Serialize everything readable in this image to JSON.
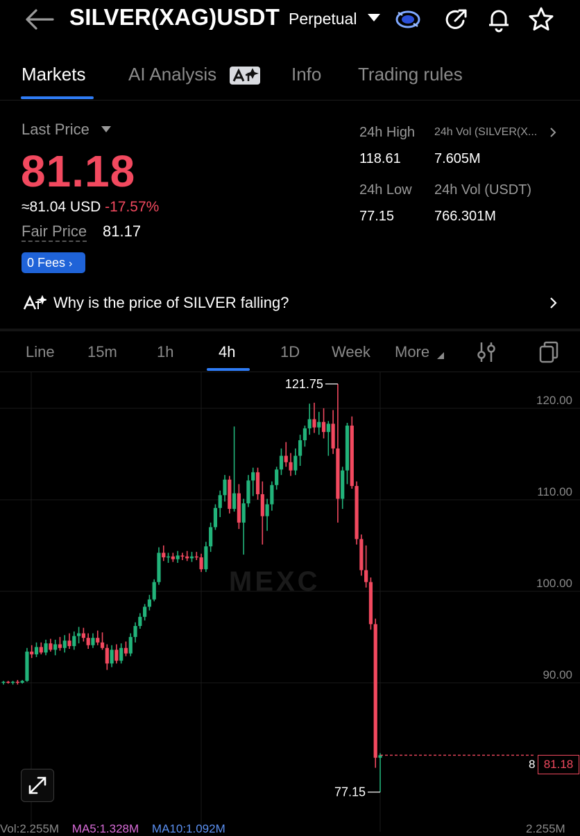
{
  "header": {
    "symbol": "SILVER(XAG)USDT",
    "contract_type": "Perpetual",
    "icons": [
      "back-arrow-icon",
      "coin-badge-icon",
      "share-icon",
      "bell-icon",
      "star-icon"
    ]
  },
  "tabs": [
    {
      "label": "Markets",
      "active": true
    },
    {
      "label": "AI Analysis",
      "active": false
    },
    {
      "label": "Info",
      "active": false
    },
    {
      "label": "Trading rules",
      "active": false
    }
  ],
  "price": {
    "last_price_label": "Last Price",
    "last_price": "81.18",
    "usd_value": "≈81.04 USD",
    "change": "-17.57%",
    "fair_price_label": "Fair Price",
    "fair_price": "81.17",
    "fees_label": "0 Fees"
  },
  "stats": {
    "high_label": "24h High",
    "high": "118.61",
    "vol_silver_label": "24h Vol (SILVER(X...",
    "vol_silver": "7.605M",
    "low_label": "24h Low",
    "low": "77.15",
    "vol_usdt_label": "24h Vol  (USDT)",
    "vol_usdt": "766.301M"
  },
  "why_row": {
    "text": "Why is the price of SILVER falling?"
  },
  "intervals": [
    {
      "label": "Line",
      "active": false
    },
    {
      "label": "15m",
      "active": false
    },
    {
      "label": "1h",
      "active": false
    },
    {
      "label": "4h",
      "active": true
    },
    {
      "label": "1D",
      "active": false
    },
    {
      "label": "Week",
      "active": false
    },
    {
      "label": "More",
      "active": false
    }
  ],
  "chart_overlay": {
    "watermark": "MEXC",
    "current_price_tag": "81.18",
    "current_price_edge": "8",
    "high_marker": "121.75",
    "low_marker": "77.15",
    "vol_label": "Vol:2.255M",
    "ma5_label": "MA5:1.328M",
    "ma10_label": "MA10:1.092M",
    "vol_axis_label": "2.255M"
  },
  "colors": {
    "up": "#22b37a",
    "down": "#f2495f",
    "accent": "#2f7cf6",
    "ma5": "#d86bd8",
    "ma10": "#5a8ff0"
  },
  "chart_data": {
    "type": "candlestick",
    "interval": "4h",
    "y_ticks": [
      "120.00",
      "110.00",
      "100.00",
      "90.00"
    ],
    "ylim": [
      76,
      122.5
    ],
    "candles": [
      [
        89.1,
        89.3,
        88.9,
        89.2
      ],
      [
        89.2,
        89.3,
        89.0,
        89.1
      ],
      [
        89.1,
        89.3,
        88.9,
        89.2
      ],
      [
        89.2,
        89.4,
        88.9,
        89.1
      ],
      [
        89.1,
        89.4,
        89.0,
        89.3
      ],
      [
        89.3,
        92.9,
        89.2,
        92.5
      ],
      [
        92.5,
        93.2,
        91.8,
        92.2
      ],
      [
        92.2,
        93.5,
        91.9,
        93.0
      ],
      [
        93.0,
        93.5,
        92.2,
        92.4
      ],
      [
        92.4,
        93.8,
        92.1,
        93.4
      ],
      [
        93.4,
        93.9,
        92.5,
        92.7
      ],
      [
        92.7,
        93.8,
        92.1,
        93.3
      ],
      [
        93.3,
        94.1,
        92.6,
        92.9
      ],
      [
        92.9,
        94.3,
        92.4,
        93.7
      ],
      [
        93.7,
        94.5,
        92.8,
        93.1
      ],
      [
        93.1,
        94.7,
        92.7,
        94.2
      ],
      [
        94.2,
        95.2,
        93.4,
        94.5
      ],
      [
        94.5,
        95.1,
        93.6,
        94.0
      ],
      [
        94.0,
        94.5,
        92.8,
        93.2
      ],
      [
        93.2,
        94.5,
        92.9,
        94.0
      ],
      [
        94.0,
        94.8,
        93.2,
        93.5
      ],
      [
        93.5,
        94.6,
        92.7,
        92.9
      ],
      [
        92.9,
        93.3,
        90.5,
        91.2
      ],
      [
        91.2,
        93.2,
        90.8,
        92.7
      ],
      [
        92.7,
        93.3,
        91.2,
        91.5
      ],
      [
        91.5,
        93.4,
        91.2,
        92.9
      ],
      [
        92.9,
        93.6,
        92.0,
        92.3
      ],
      [
        92.3,
        94.5,
        92.0,
        94.1
      ],
      [
        94.1,
        95.7,
        93.5,
        95.3
      ],
      [
        95.3,
        96.7,
        95.0,
        96.3
      ],
      [
        96.3,
        97.7,
        95.9,
        97.4
      ],
      [
        97.4,
        98.7,
        97.0,
        98.2
      ],
      [
        98.2,
        100.4,
        98.0,
        100.1
      ],
      [
        100.1,
        103.9,
        99.8,
        103.3
      ],
      [
        103.3,
        104.1,
        102.4,
        102.8
      ],
      [
        102.8,
        103.3,
        102.2,
        102.9
      ],
      [
        102.9,
        103.3,
        102.3,
        102.6
      ],
      [
        102.6,
        103.5,
        102.2,
        103.0
      ],
      [
        103.0,
        103.3,
        102.5,
        102.9
      ],
      [
        102.9,
        103.5,
        102.4,
        102.7
      ],
      [
        102.7,
        103.4,
        102.3,
        102.9
      ],
      [
        102.9,
        103.4,
        102.5,
        102.8
      ],
      [
        102.8,
        103.2,
        101.2,
        101.5
      ],
      [
        101.5,
        104.5,
        101.2,
        104.0
      ],
      [
        104.0,
        106.6,
        103.4,
        106.1
      ],
      [
        106.1,
        108.6,
        105.8,
        108.2
      ],
      [
        108.2,
        110.1,
        107.2,
        109.6
      ],
      [
        109.6,
        111.8,
        108.9,
        111.3
      ],
      [
        111.3,
        111.7,
        107.6,
        108.1
      ],
      [
        108.1,
        117.1,
        107.8,
        109.8
      ],
      [
        109.8,
        110.8,
        105.9,
        106.6
      ],
      [
        106.6,
        109.2,
        103.1,
        108.7
      ],
      [
        108.7,
        111.8,
        108.3,
        111.2
      ],
      [
        111.2,
        112.6,
        109.5,
        112.1
      ],
      [
        112.1,
        112.6,
        109.1,
        109.7
      ],
      [
        109.7,
        111.1,
        104.2,
        107.3
      ],
      [
        107.3,
        109.2,
        105.7,
        108.6
      ],
      [
        108.6,
        111.1,
        107.9,
        110.7
      ],
      [
        110.7,
        112.7,
        110.2,
        112.4
      ],
      [
        112.4,
        114.7,
        111.8,
        113.9
      ],
      [
        113.9,
        115.4,
        112.7,
        113.2
      ],
      [
        113.2,
        114.2,
        111.7,
        112.3
      ],
      [
        112.3,
        114.7,
        111.8,
        113.9
      ],
      [
        113.9,
        116.2,
        112.8,
        115.6
      ],
      [
        115.6,
        117.2,
        114.9,
        116.9
      ],
      [
        116.9,
        119.6,
        116.2,
        117.9
      ],
      [
        117.9,
        119.7,
        116.4,
        117.0
      ],
      [
        117.0,
        118.7,
        116.2,
        117.6
      ],
      [
        117.6,
        119.1,
        115.8,
        116.5
      ],
      [
        116.5,
        117.7,
        113.9,
        117.4
      ],
      [
        117.4,
        118.9,
        114.1,
        114.7
      ],
      [
        114.7,
        121.75,
        106.6,
        109.2
      ],
      [
        109.2,
        112.7,
        108.1,
        112.3
      ],
      [
        112.3,
        117.5,
        110.8,
        117.2
      ],
      [
        117.2,
        118.2,
        110.3,
        110.6
      ],
      [
        110.6,
        111.1,
        104.2,
        104.8
      ],
      [
        104.8,
        105.3,
        100.8,
        101.4
      ],
      [
        101.4,
        104.1,
        99.5,
        100.1
      ],
      [
        100.1,
        100.6,
        94.9,
        95.5
      ],
      [
        95.5,
        96.1,
        79.8,
        80.9
      ],
      [
        80.9,
        81.4,
        77.15,
        81.18
      ]
    ]
  }
}
